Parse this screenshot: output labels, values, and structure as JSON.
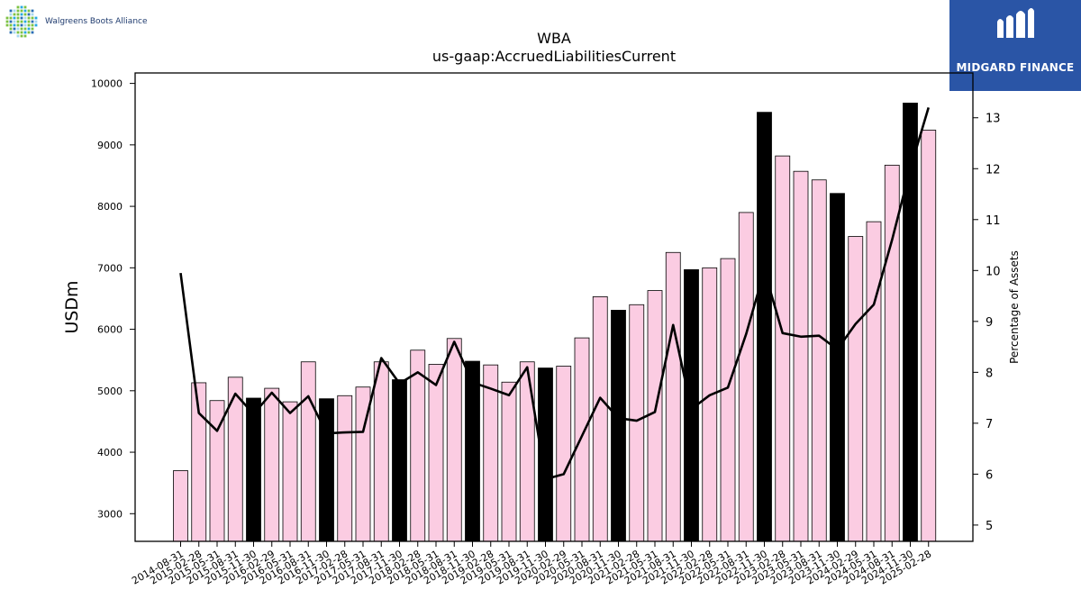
{
  "brand_left": {
    "name": "Walgreens Boots Alliance",
    "icon": "dotted-globe-logo-icon"
  },
  "brand_right": {
    "name": "MIDGARD FINANCE",
    "icon": "midgard-m-logo-icon",
    "background": "#2a55a6"
  },
  "chart_data": {
    "type": "bar",
    "title": "WBA",
    "subtitle": "us-gaap:AccruedLiabilitiesCurrent",
    "ylabel": "USDm",
    "y2label": "Percentage of Assets",
    "ylim": [
      2550,
      10170
    ],
    "y2lim": [
      4.68,
      13.88
    ],
    "yticks": [
      3000,
      4000,
      5000,
      6000,
      7000,
      8000,
      9000,
      10000
    ],
    "y2ticks": [
      5,
      6,
      7,
      8,
      9,
      10,
      11,
      12,
      13
    ],
    "categories": [
      "2014-08-31",
      "2015-02-28",
      "2015-05-31",
      "2015-08-31",
      "2015-11-30",
      "2016-02-29",
      "2016-05-31",
      "2016-08-31",
      "2016-11-30",
      "2017-02-28",
      "2017-05-31",
      "2017-08-31",
      "2017-11-30",
      "2018-02-28",
      "2018-05-31",
      "2018-08-31",
      "2018-11-30",
      "2019-02-28",
      "2019-05-31",
      "2019-08-31",
      "2019-11-30",
      "2020-02-29",
      "2020-05-31",
      "2020-08-31",
      "2020-11-30",
      "2021-02-28",
      "2021-05-31",
      "2021-08-31",
      "2021-11-30",
      "2022-02-28",
      "2022-05-31",
      "2022-08-31",
      "2022-11-30",
      "2023-02-28",
      "2023-05-31",
      "2023-08-31",
      "2023-11-30",
      "2024-02-29",
      "2024-05-31",
      "2024-08-31",
      "2024-11-30",
      "2025-02-28"
    ],
    "series": [
      {
        "type": "bar",
        "values": [
          3700,
          5130,
          4840,
          5220,
          4880,
          5040,
          4820,
          5470,
          4870,
          4920,
          5060,
          5470,
          5180,
          5660,
          5430,
          5850,
          5480,
          5420,
          5140,
          5470,
          5370,
          5400,
          5860,
          6530,
          6310,
          6400,
          6630,
          7250,
          6970,
          7000,
          7150,
          7900,
          9530,
          8820,
          8570,
          8430,
          8210,
          7510,
          7750,
          8670,
          9680,
          9240
        ],
        "highlight": [
          false,
          false,
          false,
          false,
          true,
          false,
          false,
          false,
          true,
          false,
          false,
          false,
          true,
          false,
          false,
          false,
          true,
          false,
          false,
          false,
          true,
          false,
          false,
          false,
          true,
          false,
          false,
          false,
          true,
          false,
          false,
          false,
          true,
          false,
          false,
          false,
          true,
          false,
          false,
          false,
          true,
          false
        ]
      },
      {
        "type": "line",
        "axis": "right",
        "values": [
          9.95,
          7.2,
          6.85,
          7.58,
          7.18,
          7.6,
          7.2,
          7.53,
          6.8,
          6.82,
          6.83,
          8.28,
          7.78,
          8.0,
          7.75,
          8.6,
          7.8,
          7.68,
          7.55,
          8.1,
          5.9,
          6.0,
          6.75,
          7.5,
          7.1,
          7.05,
          7.22,
          8.93,
          7.28,
          7.55,
          7.7,
          8.75,
          10.0,
          8.77,
          8.7,
          8.72,
          8.45,
          8.95,
          9.33,
          10.6,
          12.0,
          13.2
        ]
      }
    ],
    "colors": {
      "bar": "#fbcce2",
      "bar_highlight": "#000000",
      "line": "#000000"
    },
    "grid": false,
    "legend": "none"
  }
}
